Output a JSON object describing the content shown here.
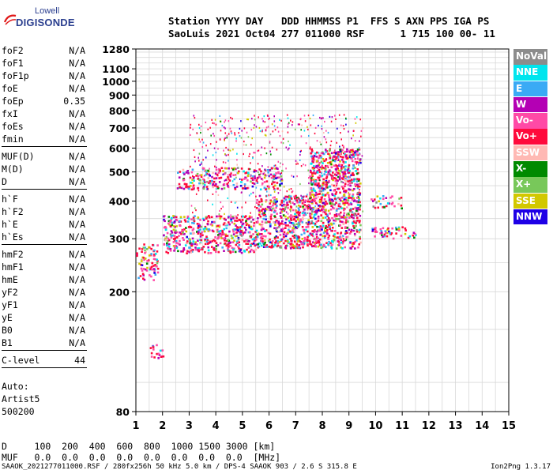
{
  "logo": {
    "line1": "Lowell",
    "line2": "DIGISONDE"
  },
  "header": {
    "line1": "Station YYYY DAY   DDD HHMMSS P1  FFS S AXN PPS IGA PS",
    "line2": "SaoLuis 2021 Oct04 277 011000 RSF      1 715 100 00- 11"
  },
  "params": {
    "groups": [
      [
        [
          "foF2",
          "N/A"
        ],
        [
          "foF1",
          "N/A"
        ],
        [
          "foF1p",
          "N/A"
        ],
        [
          "foE",
          "N/A"
        ],
        [
          "foEp",
          "0.35"
        ],
        [
          "fxI",
          "N/A"
        ],
        [
          "foEs",
          "N/A"
        ],
        [
          "fmin",
          "N/A"
        ]
      ],
      [
        [
          "MUF(D)",
          "N/A"
        ],
        [
          "M(D)",
          "N/A"
        ],
        [
          "D",
          "N/A"
        ]
      ],
      [
        [
          "h`F",
          "N/A"
        ],
        [
          "h`F2",
          "N/A"
        ],
        [
          "h`E",
          "N/A"
        ],
        [
          "h`Es",
          "N/A"
        ]
      ],
      [
        [
          "hmF2",
          "N/A"
        ],
        [
          "hmF1",
          "N/A"
        ],
        [
          "hmE",
          "N/A"
        ],
        [
          "yF2",
          "N/A"
        ],
        [
          "yF1",
          "N/A"
        ],
        [
          "yE",
          "N/A"
        ],
        [
          "B0",
          "N/A"
        ],
        [
          "B1",
          "N/A"
        ]
      ],
      [
        [
          "C-level",
          "44"
        ]
      ]
    ]
  },
  "auto": {
    "line1": "Auto:",
    "line2": "Artist5",
    "line3": "500200"
  },
  "legend": [
    {
      "label": "NoVal",
      "color": "#8c8c8c"
    },
    {
      "label": "NNE",
      "color": "#00e5ee"
    },
    {
      "label": "E",
      "color": "#3aaaf5"
    },
    {
      "label": "W",
      "color": "#b400b4"
    },
    {
      "label": "Vo-",
      "color": "#ff4aa6"
    },
    {
      "label": "Vo+",
      "color": "#ff0a3c"
    },
    {
      "label": "SSW",
      "color": "#ffb9b4"
    },
    {
      "label": "X-",
      "color": "#008a00"
    },
    {
      "label": "X+",
      "color": "#78c85a"
    },
    {
      "label": "SSE",
      "color": "#d2c800"
    },
    {
      "label": "NNW",
      "color": "#1e00e6"
    }
  ],
  "chart_data": {
    "type": "scatter",
    "title": "",
    "xlabel": "",
    "ylabel": "",
    "xlim": [
      1,
      15
    ],
    "ylim": [
      80,
      1280
    ],
    "y_scale": "log",
    "grid": true,
    "x_ticks": [
      1,
      2,
      3,
      4,
      5,
      6,
      7,
      8,
      9,
      10,
      11,
      12,
      13,
      14,
      15
    ],
    "y_ticks": [
      80,
      200,
      300,
      400,
      500,
      600,
      700,
      800,
      900,
      1000,
      1100,
      1280
    ],
    "traces": [
      {
        "name": "",
        "freq_range": [
          1.0,
          1.8
        ],
        "height_range": [
          220,
          290
        ],
        "density": 0.6
      },
      {
        "name": "",
        "freq_range": [
          1.5,
          2.0
        ],
        "height_range": [
          120,
          135
        ],
        "density": 0.5
      },
      {
        "name": "",
        "freq_range": [
          2.0,
          5.5
        ],
        "height_range": [
          270,
          360
        ],
        "density": 0.8
      },
      {
        "name": "",
        "freq_range": [
          5.5,
          7.5
        ],
        "height_range": [
          280,
          420
        ],
        "density": 0.9
      },
      {
        "name": "",
        "freq_range": [
          7.5,
          9.4
        ],
        "height_range": [
          280,
          600
        ],
        "density": 0.95
      },
      {
        "name": "",
        "freq_range": [
          2.5,
          6.5
        ],
        "height_range": [
          440,
          520
        ],
        "density": 0.6
      },
      {
        "name": "",
        "freq_range": [
          9.8,
          11.5
        ],
        "height_range": [
          300,
          330
        ],
        "density": 0.5
      },
      {
        "name": "",
        "freq_range": [
          9.8,
          11.0
        ],
        "height_range": [
          380,
          420
        ],
        "density": 0.4
      }
    ]
  },
  "dtable": {
    "row1": "D     100  200  400  600  800  1000 1500 3000 [km]",
    "row2": "MUF   0.0  0.0  0.0  0.0  0.0  0.0  0.0  0.0  [MHz]"
  },
  "footer": "SAAOK_2021277011000.RSF / 280fx256h 50 kHz 5.0 km / DPS-4 SAAOK 903 / 2.6 S 315.8 E",
  "version": "Ion2Png 1.3.17"
}
